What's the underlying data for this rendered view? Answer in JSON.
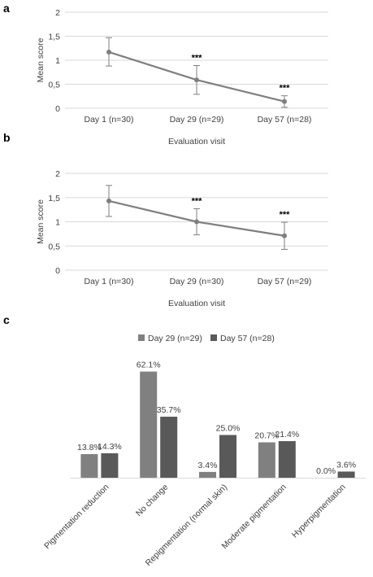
{
  "colors": {
    "line": "#7f7f7f",
    "errorbar": "#7f7f7f",
    "grid": "#d9d9d9",
    "bar_day29": "#808080",
    "bar_day57": "#595959"
  },
  "panels": {
    "a": "a",
    "b": "b",
    "c": "c"
  },
  "chart_data": [
    {
      "type": "line",
      "panel": "a",
      "categories": [
        "Day 1 (n=30)",
        "Day 29  (n=29)",
        "Day 57 (n=28)"
      ],
      "values": [
        1.17,
        0.59,
        0.14
      ],
      "error_low": [
        0.88,
        0.29,
        0.02
      ],
      "error_high": [
        1.47,
        0.89,
        0.26
      ],
      "annotations": [
        "",
        "***",
        "***"
      ],
      "ylabel": "Mean score",
      "xlabel": "Evaluation visit",
      "ylim": [
        0,
        2
      ],
      "yticks": [
        "0",
        "0,5",
        "1",
        "1,5",
        "2"
      ],
      "grid": true
    },
    {
      "type": "line",
      "panel": "b",
      "categories": [
        "Day 1 (n=30)",
        "Day 29  (n=30)",
        "Day 57 (n=29)"
      ],
      "values": [
        1.43,
        1.0,
        0.71
      ],
      "error_low": [
        1.11,
        0.73,
        0.43
      ],
      "error_high": [
        1.75,
        1.27,
        0.99
      ],
      "annotations": [
        "",
        "***",
        "***"
      ],
      "ylabel": "Mean score",
      "xlabel": "Evaluation visit",
      "ylim": [
        0,
        2
      ],
      "yticks": [
        "0",
        "0,5",
        "1",
        "1,5",
        "2"
      ],
      "grid": true
    },
    {
      "type": "bar",
      "panel": "c",
      "categories": [
        "Pigmentation reduction",
        "No change",
        "Repigmentation (normal skin)",
        "Moderate pigmentation",
        "Hyperpigmentation"
      ],
      "series": [
        {
          "name": "Day 29 (n=29)",
          "values": [
            13.8,
            62.1,
            3.4,
            20.7,
            0.0
          ],
          "labels": [
            "13.8%",
            "62.1%",
            "3.4%",
            "20.7%",
            "0.0%"
          ]
        },
        {
          "name": "Day 57 (n=28)",
          "values": [
            14.3,
            35.7,
            25.0,
            21.4,
            3.6
          ],
          "labels": [
            "14.3%",
            "35.7%",
            "25.0%",
            "21.4%",
            "3.6%"
          ]
        }
      ],
      "legend": "top",
      "grid": false
    }
  ]
}
